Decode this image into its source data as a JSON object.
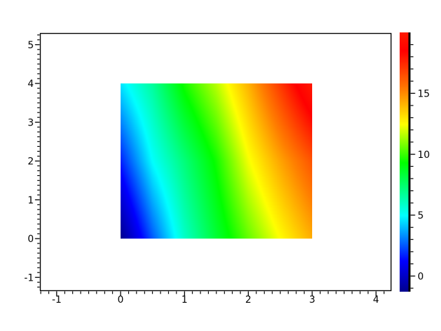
{
  "figure": {
    "background": "#ffffff",
    "axis_color": "#000000",
    "label_color": "#000000"
  },
  "chart_data": {
    "type": "heatmap",
    "title": "",
    "description": "Pseudocolor plot (Sgrayplot-style) of a smooth 2D field over x in [0,3], y in [0,4], rainbow jet-like colormap, with vertical colorbar",
    "x_axis": {
      "tick_labels": [
        "-1",
        "0",
        "1",
        "2",
        "3",
        "4"
      ],
      "tick_values": [
        -1,
        0,
        1,
        2,
        3,
        4
      ],
      "minor_subdivisions": 8,
      "range": [
        -1.26,
        4.24
      ]
    },
    "y_axis": {
      "tick_labels": [
        "-1",
        "0",
        "1",
        "2",
        "3",
        "4",
        "5"
      ],
      "tick_values": [
        -1,
        0,
        1,
        2,
        3,
        4,
        5
      ],
      "minor_subdivisions": 8,
      "range": [
        -1.35,
        5.3
      ]
    },
    "heatmap": {
      "x_range": [
        0,
        3
      ],
      "y_range": [
        0,
        4
      ],
      "cols_x": [
        0,
        0.5,
        1,
        1.5,
        2,
        2.5,
        3
      ],
      "rows_y": [
        4,
        2,
        0
      ],
      "values": [
        [
          4.6,
          6.66,
          9.58,
          11.61,
          14.15,
          17.09,
          20.03
        ],
        [
          1.7,
          5.0,
          7.24,
          9.52,
          12.33,
          14.45,
          16.4
        ],
        [
          -1.28,
          2.55,
          5.9,
          8.4,
          10.55,
          12.5,
          14.27
        ]
      ],
      "interpolation": "bilinear"
    },
    "colorbar": {
      "vmin": -1.28,
      "vmax": 20.03,
      "major_tick_labels": [
        "0",
        "5",
        "10",
        "15"
      ],
      "major_tick_values": [
        0,
        5,
        10,
        15
      ],
      "minor_tick_step": 1,
      "colormap_stops": [
        [
          0.0,
          0,
          0,
          143
        ],
        [
          0.117,
          0,
          0,
          255
        ],
        [
          0.293,
          0,
          255,
          255
        ],
        [
          0.497,
          0,
          255,
          0
        ],
        [
          0.646,
          255,
          255,
          0
        ],
        [
          0.777,
          255,
          128,
          0
        ],
        [
          0.93,
          255,
          0,
          0
        ],
        [
          1.0,
          255,
          25,
          0
        ]
      ]
    }
  }
}
